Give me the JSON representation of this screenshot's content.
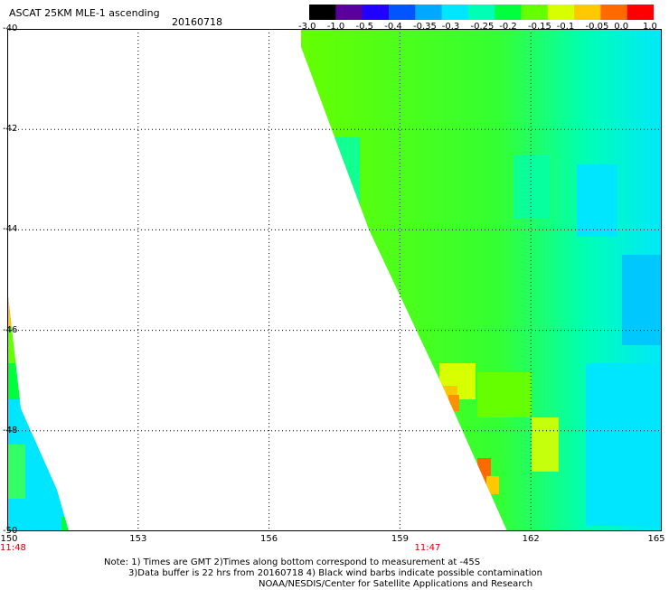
{
  "header": {
    "title": "ASCAT 25KM MLE-1 ascending",
    "date": "20160718"
  },
  "colorbar": {
    "labels": [
      "-3.0",
      "-1.0",
      "-0.5",
      "-0.4",
      "-0.35",
      "-0.3",
      "-0.25",
      "-0.2",
      "-0.15",
      "-0.1",
      "-0.05",
      "0.0",
      "1.0"
    ],
    "colors": [
      "#000000",
      "#5a009f",
      "#2200ff",
      "#0055ff",
      "#00a8ff",
      "#00e6ff",
      "#00ffb4",
      "#00ff3c",
      "#66ff00",
      "#d8ff00",
      "#ffc800",
      "#ff6a00",
      "#ff0000"
    ]
  },
  "map": {
    "lon_ticks": [
      "150",
      "153",
      "156",
      "159",
      "162",
      "165"
    ],
    "lat_ticks": [
      "-40",
      "-42",
      "-44",
      "-46",
      "-48",
      "-50"
    ],
    "lon_range": [
      150,
      165
    ],
    "lat_range": [
      -50,
      -40
    ],
    "swath_times": [
      {
        "label": "11:48",
        "lon": 150.0
      },
      {
        "label": "11:47",
        "lon": 159.5
      }
    ]
  },
  "notes": {
    "line1": "Note: 1) Times are GMT 2)Times along bottom correspond to measurement at -45S",
    "line2": "3)Data buffer is 22 hrs from 20160718 4) Black wind barbs indicate possible contamination",
    "line3": "NOAA/NESDIS/Center for Satellite Applications and Research"
  }
}
